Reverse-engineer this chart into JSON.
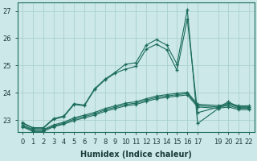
{
  "xlabel": "Humidex (Indice chaleur)",
  "ylabel": "",
  "background_color": "#cce8e8",
  "grid_color": "#aacfcf",
  "line_color": "#1a6b5a",
  "xlim": [
    -0.5,
    22.5
  ],
  "ylim": [
    22.55,
    27.3
  ],
  "yticks": [
    23,
    24,
    25,
    26,
    27
  ],
  "ytick_labels": [
    "23",
    "24",
    "25",
    "26",
    "27"
  ],
  "xticks": [
    0,
    1,
    2,
    3,
    4,
    5,
    6,
    7,
    8,
    9,
    10,
    11,
    12,
    13,
    14,
    15,
    16,
    17,
    19,
    20,
    21,
    22
  ],
  "xtick_labels": [
    "0",
    "1",
    "2",
    "3",
    "4",
    "5",
    "6",
    "7",
    "8",
    "9",
    "10",
    "11",
    "12",
    "13",
    "14",
    "15",
    "16",
    "17",
    "19",
    "20",
    "21",
    "22"
  ],
  "series": [
    {
      "x": [
        0,
        1,
        2,
        3,
        4,
        5,
        6,
        7,
        8,
        9,
        10,
        11,
        12,
        13,
        14,
        15,
        16,
        17,
        19,
        20,
        21,
        22
      ],
      "y": [
        22.9,
        22.72,
        22.72,
        23.05,
        23.15,
        23.6,
        23.55,
        24.15,
        24.5,
        24.75,
        25.05,
        25.1,
        25.75,
        25.95,
        25.75,
        25.05,
        27.05,
        22.87,
        23.42,
        23.62,
        23.52,
        23.52
      ]
    },
    {
      "x": [
        0,
        1,
        2,
        3,
        4,
        5,
        6,
        7,
        8,
        9,
        10,
        11,
        12,
        13,
        14,
        15,
        16,
        17,
        19,
        20,
        21,
        22
      ],
      "y": [
        22.88,
        22.7,
        22.7,
        23.02,
        23.12,
        23.57,
        23.52,
        24.12,
        24.47,
        24.72,
        24.87,
        24.97,
        25.6,
        25.78,
        25.58,
        24.82,
        26.7,
        23.27,
        23.47,
        23.67,
        23.47,
        23.47
      ]
    },
    {
      "x": [
        0,
        1,
        2,
        3,
        4,
        5,
        6,
        7,
        8,
        9,
        10,
        11,
        12,
        13,
        14,
        15,
        16,
        17,
        19,
        20,
        21,
        22
      ],
      "y": [
        22.82,
        22.65,
        22.65,
        22.82,
        22.92,
        23.08,
        23.18,
        23.28,
        23.42,
        23.52,
        23.62,
        23.67,
        23.78,
        23.88,
        23.93,
        23.98,
        24.02,
        23.58,
        23.53,
        23.58,
        23.48,
        23.48
      ]
    },
    {
      "x": [
        0,
        1,
        2,
        3,
        4,
        5,
        6,
        7,
        8,
        9,
        10,
        11,
        12,
        13,
        14,
        15,
        16,
        17,
        19,
        20,
        21,
        22
      ],
      "y": [
        22.78,
        22.62,
        22.62,
        22.78,
        22.88,
        23.03,
        23.13,
        23.23,
        23.37,
        23.47,
        23.57,
        23.62,
        23.73,
        23.83,
        23.88,
        23.93,
        23.97,
        23.53,
        23.48,
        23.53,
        23.43,
        23.43
      ]
    },
    {
      "x": [
        0,
        1,
        2,
        3,
        4,
        5,
        6,
        7,
        8,
        9,
        10,
        11,
        12,
        13,
        14,
        15,
        16,
        17,
        19,
        20,
        21,
        22
      ],
      "y": [
        22.75,
        22.58,
        22.58,
        22.75,
        22.85,
        22.98,
        23.08,
        23.18,
        23.32,
        23.42,
        23.52,
        23.57,
        23.68,
        23.78,
        23.83,
        23.88,
        23.92,
        23.48,
        23.43,
        23.48,
        23.38,
        23.38
      ]
    }
  ],
  "figwidth": 3.2,
  "figheight": 2.0,
  "dpi": 100
}
